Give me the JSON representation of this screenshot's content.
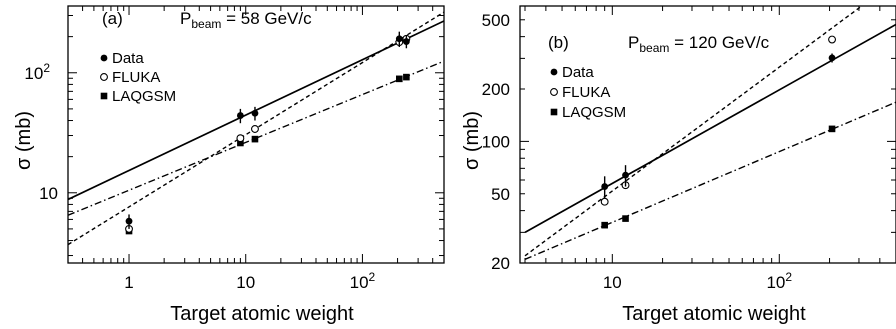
{
  "chart_data": [
    {
      "type": "scatter",
      "panel_label": "(a)",
      "title_main": "P",
      "title_sub": "beam",
      "title_rest": " = 58 GeV/c",
      "xlabel": "Target atomic weight",
      "ylabel": "σ (mb)",
      "x_scale": "log",
      "y_scale": "log",
      "xlim": [
        0.3,
        500
      ],
      "ylim": [
        2.6,
        360
      ],
      "xticks": [
        {
          "v": 1,
          "l": "1"
        },
        {
          "v": 10,
          "l": "10"
        },
        {
          "v": 100,
          "l": "10",
          "sup": "2"
        }
      ],
      "yticks": [
        {
          "v": 10,
          "l": "10"
        },
        {
          "v": 100,
          "l": "10",
          "sup": "2"
        }
      ],
      "legend": [
        {
          "name": "Data",
          "marker": "filled-circle"
        },
        {
          "name": "FLUKA",
          "marker": "open-circle"
        },
        {
          "name": "LAQGSM",
          "marker": "filled-square"
        }
      ],
      "series": [
        {
          "name": "Data",
          "points": [
            {
              "x": 1,
              "y": 5.8,
              "err": [
                0.8,
                0.8
              ]
            },
            {
              "x": 9,
              "y": 44,
              "err": [
                6,
                6
              ]
            },
            {
              "x": 12,
              "y": 46,
              "err": [
                6,
                6
              ]
            },
            {
              "x": 207,
              "y": 192,
              "err": [
                28,
                28
              ]
            },
            {
              "x": 238,
              "y": 182,
              "err": [
                22,
                22
              ]
            }
          ]
        },
        {
          "name": "FLUKA",
          "points": [
            {
              "x": 1,
              "y": 5.0
            },
            {
              "x": 9,
              "y": 28.5
            },
            {
              "x": 12,
              "y": 34
            },
            {
              "x": 207,
              "y": 180
            },
            {
              "x": 238,
              "y": 192
            }
          ]
        },
        {
          "name": "LAQGSM",
          "points": [
            {
              "x": 1,
              "y": 4.8
            },
            {
              "x": 9,
              "y": 26
            },
            {
              "x": 12,
              "y": 28
            },
            {
              "x": 207,
              "y": 89
            },
            {
              "x": 238,
              "y": 92
            }
          ]
        }
      ],
      "fit_lines": [
        {
          "style": "solid",
          "x": [
            0.3,
            500
          ],
          "y": [
            8.8,
            270
          ]
        },
        {
          "style": "dashed",
          "x": [
            0.3,
            500
          ],
          "y": [
            3.7,
            320
          ]
        },
        {
          "style": "dashdot",
          "x": [
            0.3,
            500
          ],
          "y": [
            6.5,
            125
          ]
        }
      ]
    },
    {
      "type": "scatter",
      "panel_label": "(b)",
      "title_main": "P",
      "title_sub": "beam",
      "title_rest": " = 120 GeV/c",
      "xlabel": "Target atomic weight",
      "ylabel": "σ (mb)",
      "x_scale": "log",
      "y_scale": "log",
      "xlim": [
        2.8,
        500
      ],
      "ylim": [
        20,
        600
      ],
      "xticks": [
        {
          "v": 10,
          "l": "10"
        },
        {
          "v": 100,
          "l": "10",
          "sup": "2"
        }
      ],
      "yticks": [
        {
          "v": 20,
          "l": "20"
        },
        {
          "v": 50,
          "l": "50"
        },
        {
          "v": 100,
          "l": "100"
        },
        {
          "v": 200,
          "l": "200"
        },
        {
          "v": 500,
          "l": "500"
        }
      ],
      "legend": [
        {
          "name": "Data",
          "marker": "filled-circle"
        },
        {
          "name": "FLUKA",
          "marker": "open-circle"
        },
        {
          "name": "LAQGSM",
          "marker": "filled-square"
        }
      ],
      "series": [
        {
          "name": "Data",
          "points": [
            {
              "x": 9,
              "y": 55,
              "err": [
                8,
                8
              ]
            },
            {
              "x": 12,
              "y": 64,
              "err": [
                9,
                9
              ]
            },
            {
              "x": 207,
              "y": 302,
              "err": [
                18,
                18
              ]
            }
          ]
        },
        {
          "name": "FLUKA",
          "points": [
            {
              "x": 9,
              "y": 45
            },
            {
              "x": 12,
              "y": 56
            },
            {
              "x": 207,
              "y": 385
            }
          ]
        },
        {
          "name": "LAQGSM",
          "points": [
            {
              "x": 9,
              "y": 33
            },
            {
              "x": 12,
              "y": 36
            },
            {
              "x": 207,
              "y": 118
            }
          ]
        }
      ],
      "fit_lines": [
        {
          "style": "solid",
          "x": [
            3,
            500
          ],
          "y": [
            30,
            470
          ]
        },
        {
          "style": "dashed",
          "x": [
            3,
            500
          ],
          "y": [
            22,
            840
          ]
        },
        {
          "style": "dashdot",
          "x": [
            3,
            500
          ],
          "y": [
            21,
            168
          ]
        }
      ]
    }
  ]
}
